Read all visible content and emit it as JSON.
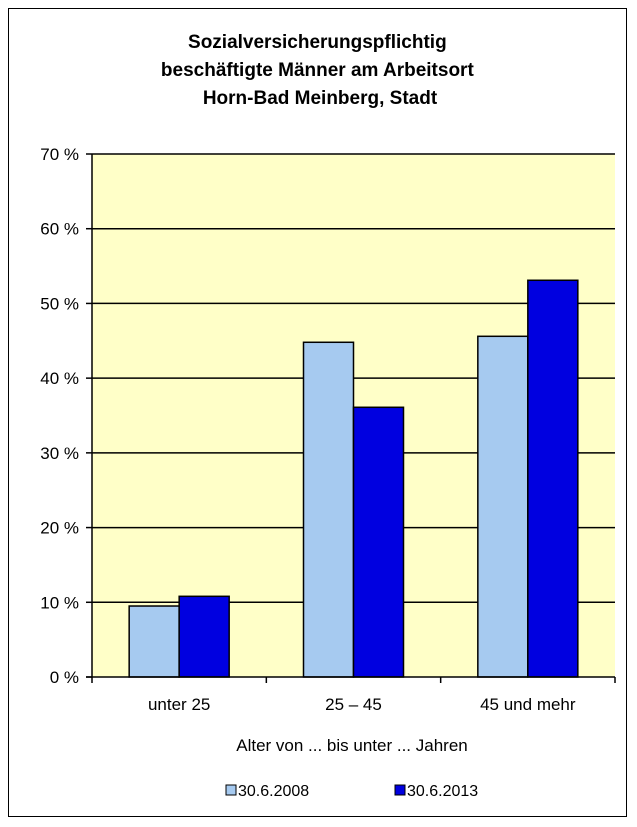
{
  "chart_data": {
    "type": "bar",
    "title": "Sozialversicherungspflichtig beschäftigte Männer am Arbeitsort Horn-Bad Meinberg, Stadt",
    "title_lines": [
      "Sozialversicherungspflichtig",
      "beschäftigte Männer am Arbeitsort",
      "Horn-Bad Meinberg, Stadt"
    ],
    "categories": [
      "unter 25",
      "25 – 45",
      "45 und mehr"
    ],
    "series": [
      {
        "name": "30.6.2008",
        "values": [
          9.5,
          44.8,
          45.6
        ]
      },
      {
        "name": "30.6.2013",
        "values": [
          10.8,
          36.1,
          53.1
        ]
      }
    ],
    "xlabel": "Alter von ... bis unter ... Jahren",
    "ylabel": "",
    "ylim": [
      0,
      70
    ],
    "yticks": [
      0,
      10,
      20,
      30,
      40,
      50,
      60,
      70
    ],
    "ytick_labels": [
      "0 %",
      "10 %",
      "20 %",
      "30 %",
      "40 %",
      "50 %",
      "60 %",
      "70 %"
    ],
    "grid": true,
    "legend_position": "bottom",
    "colors": {
      "plot_background": "#ffffc8",
      "series": [
        "#a6caf0",
        "#0000e0"
      ],
      "grid": "#000000"
    }
  }
}
